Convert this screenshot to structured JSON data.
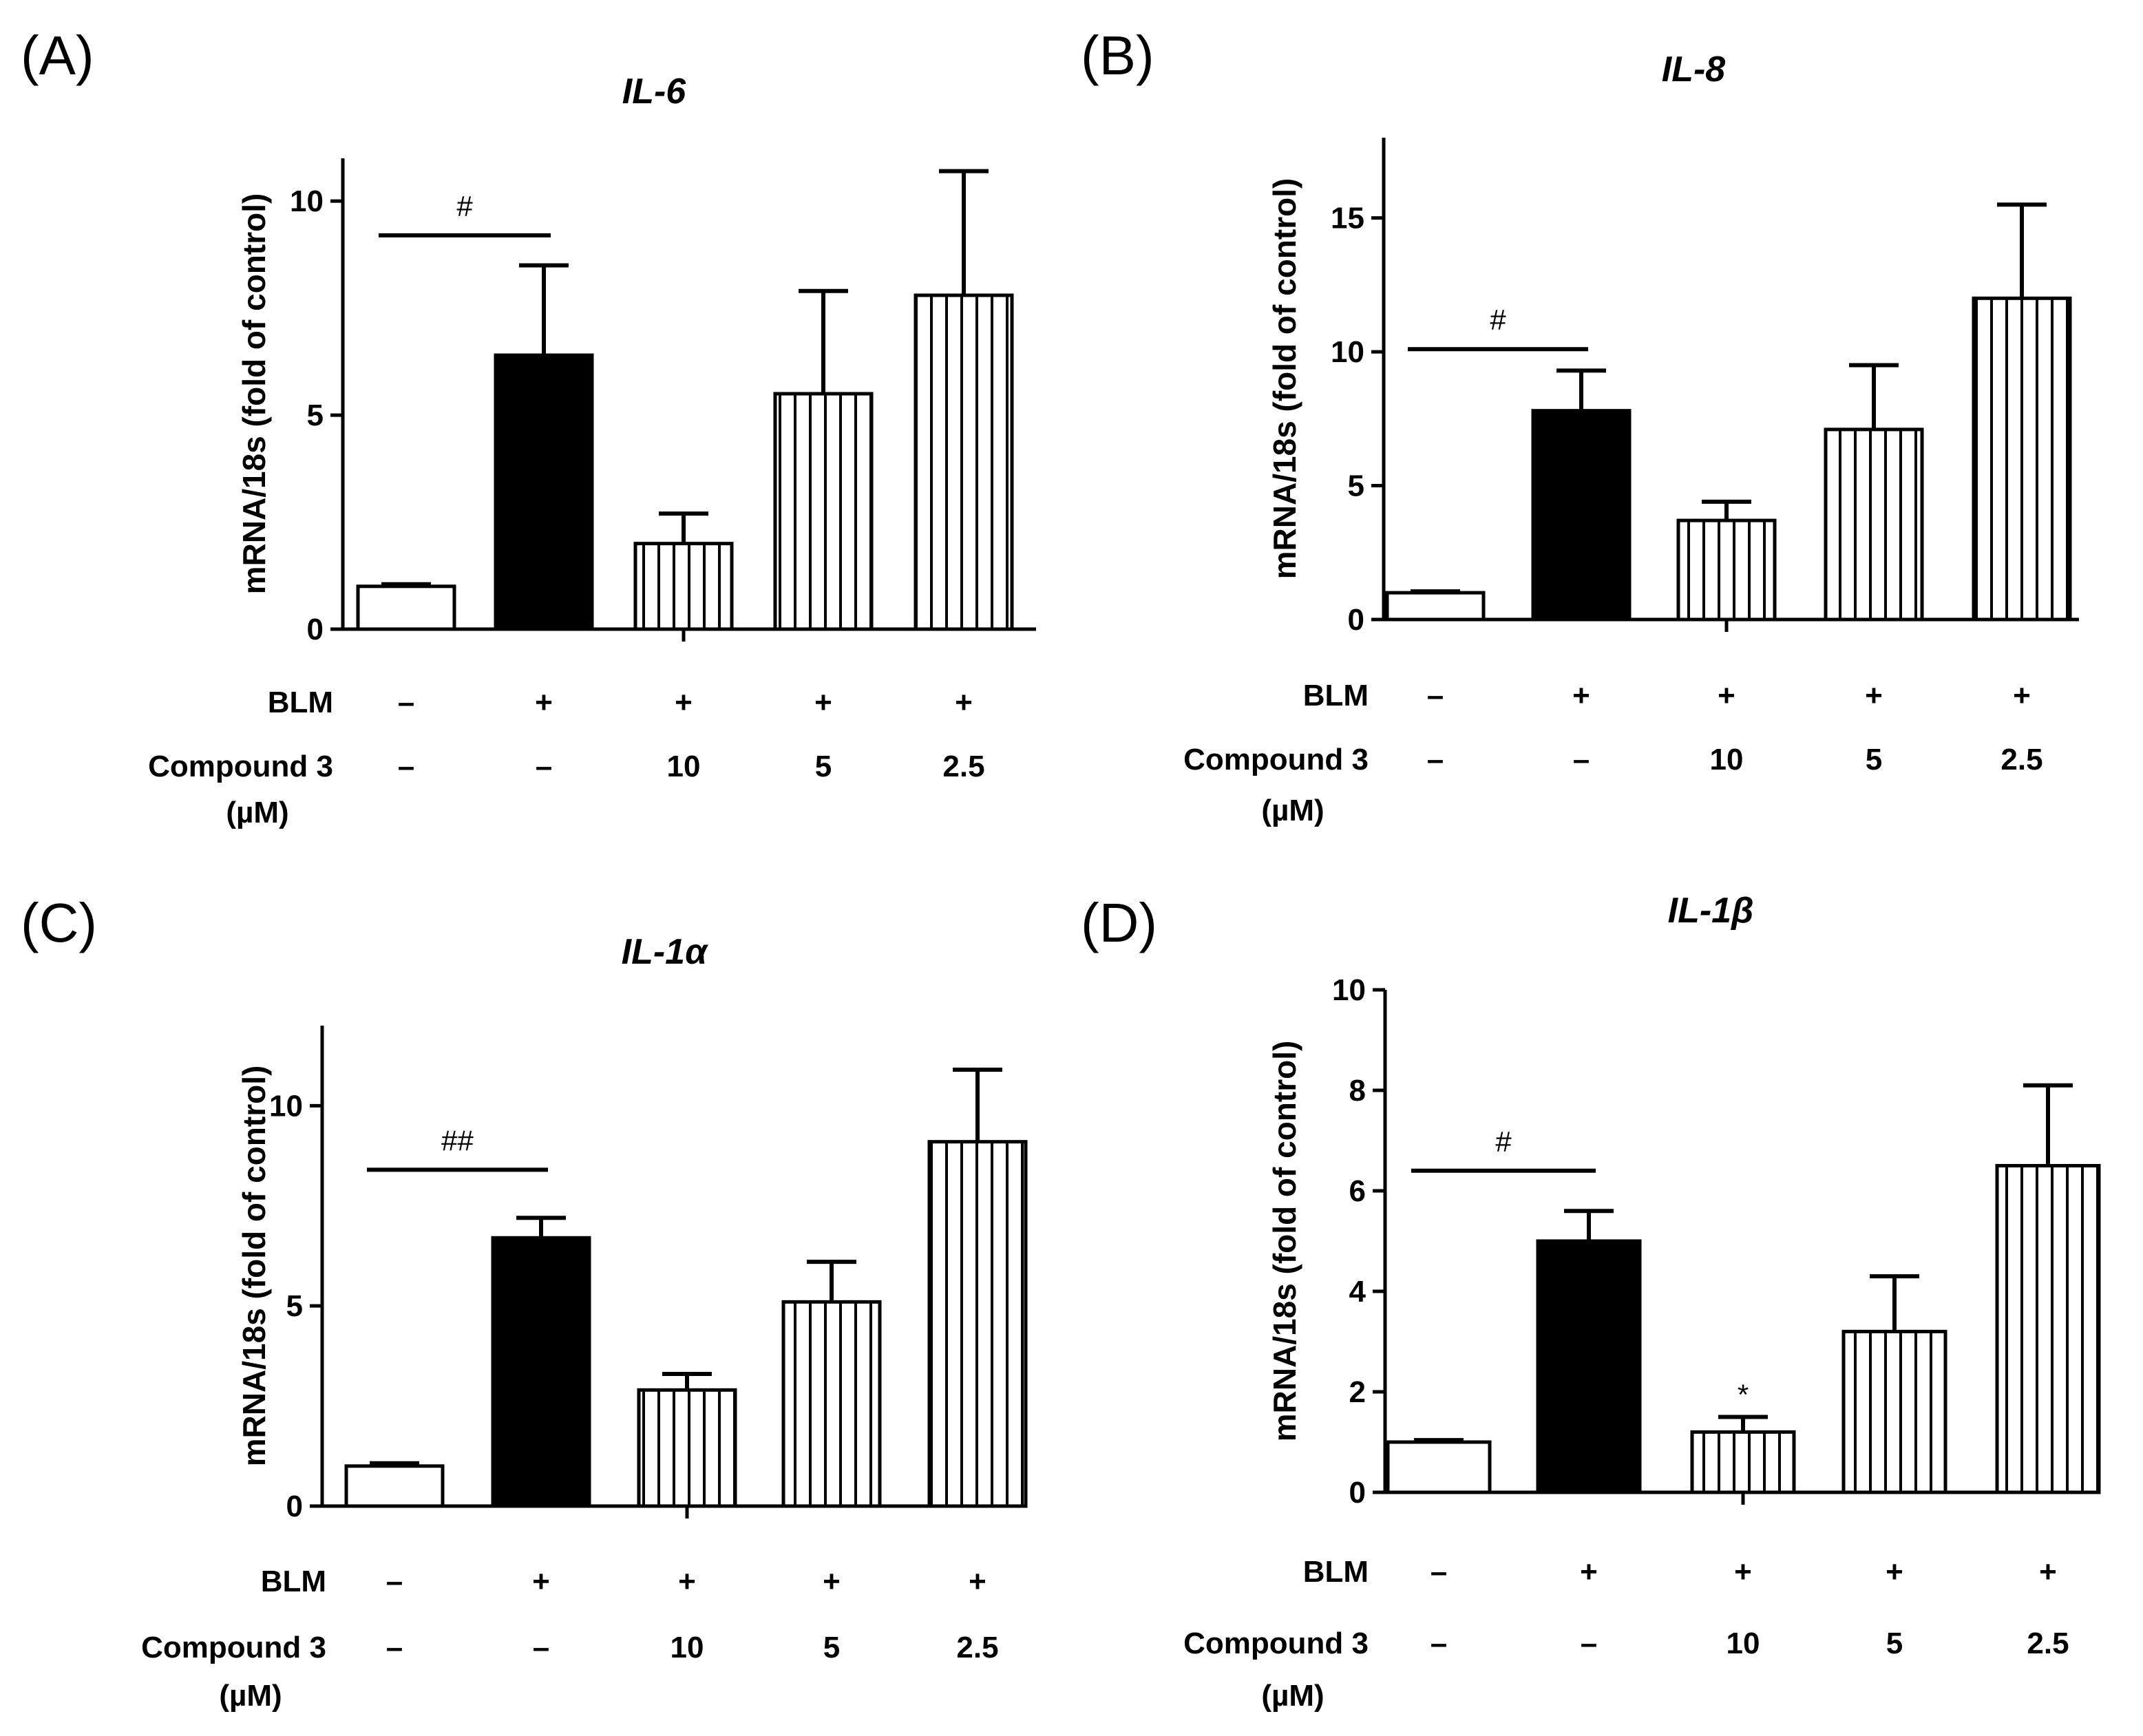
{
  "figure": {
    "row_labels": {
      "blm": "BLM",
      "compound": "Compound 3",
      "compound_unit": "(µM)"
    }
  },
  "chart_data": [
    {
      "type": "bar",
      "panel": "(A)",
      "title": "IL-6",
      "ylabel": "mRNA/18s (fold of control)",
      "ylim": [
        0,
        11
      ],
      "yticks": [
        0,
        5,
        10
      ],
      "categories": [
        "control",
        "BLM",
        "BLM + Compound 3 10 µM",
        "BLM + Compound 3 5 µM",
        "BLM + Compound 3 2.5 µM"
      ],
      "values": [
        1.0,
        6.4,
        2.0,
        5.5,
        7.8
      ],
      "errors": [
        0.05,
        2.1,
        0.7,
        2.4,
        2.9
      ],
      "fills": [
        "white",
        "black",
        "vstripes",
        "vstripes",
        "vstripes"
      ],
      "blm": [
        "–",
        "+",
        "+",
        "+",
        "+"
      ],
      "compound": [
        "–",
        "–",
        "10",
        "5",
        "2.5"
      ],
      "significance": {
        "label": "#",
        "from": 0,
        "to": 1,
        "y": 9.2
      },
      "star_labels": [
        "",
        "",
        "",
        "",
        ""
      ]
    },
    {
      "type": "bar",
      "panel": "(B)",
      "title": "IL-8",
      "ylabel": "mRNA/18s (fold of control)",
      "ylim": [
        0,
        18
      ],
      "yticks": [
        0,
        5,
        10,
        15
      ],
      "categories": [
        "control",
        "BLM",
        "BLM + Compound 3 10 µM",
        "BLM + Compound 3 5 µM",
        "BLM + Compound 3 2.5 µM"
      ],
      "values": [
        1.0,
        7.8,
        3.7,
        7.1,
        12.0
      ],
      "errors": [
        0.05,
        1.5,
        0.7,
        2.4,
        3.5
      ],
      "fills": [
        "white",
        "black",
        "vstripes",
        "vstripes",
        "vstripes"
      ],
      "blm": [
        "–",
        "+",
        "+",
        "+",
        "+"
      ],
      "compound": [
        "–",
        "–",
        "10",
        "5",
        "2.5"
      ],
      "significance": {
        "label": "#",
        "from": 0,
        "to": 1,
        "y": 10.1
      },
      "star_labels": [
        "",
        "",
        "",
        "",
        ""
      ]
    },
    {
      "type": "bar",
      "panel": "(C)",
      "title": "IL-1α",
      "ylabel": "mRNA/18s (fold of control)",
      "ylim": [
        0,
        12
      ],
      "yticks": [
        0,
        5,
        10
      ],
      "categories": [
        "control",
        "BLM",
        "BLM + Compound 3 10 µM",
        "BLM + Compound 3 5 µM",
        "BLM + Compound 3 2.5 µM"
      ],
      "values": [
        1.0,
        6.7,
        2.9,
        5.1,
        9.1
      ],
      "errors": [
        0.07,
        0.5,
        0.4,
        1.0,
        1.8
      ],
      "fills": [
        "white",
        "black",
        "vstripes",
        "vstripes",
        "vstripes"
      ],
      "blm": [
        "–",
        "+",
        "+",
        "+",
        "+"
      ],
      "compound": [
        "–",
        "–",
        "10",
        "5",
        "2.5"
      ],
      "significance": {
        "label": "##",
        "from": 0,
        "to": 1,
        "y": 8.4
      },
      "star_labels": [
        "",
        "",
        "",
        "",
        ""
      ]
    },
    {
      "type": "bar",
      "panel": "(D)",
      "title": "IL-1β",
      "ylabel": "mRNA/18s (fold of control)",
      "ylim": [
        0,
        10
      ],
      "yticks": [
        0,
        2,
        4,
        6,
        8,
        10
      ],
      "categories": [
        "control",
        "BLM",
        "BLM + Compound 3 10 µM",
        "BLM + Compound 3 5 µM",
        "BLM + Compound 3 2.5 µM"
      ],
      "values": [
        1.0,
        5.0,
        1.2,
        3.2,
        6.5
      ],
      "errors": [
        0.04,
        0.6,
        0.3,
        1.1,
        1.6
      ],
      "fills": [
        "white",
        "black",
        "vstripes",
        "vstripes",
        "vstripes"
      ],
      "blm": [
        "–",
        "+",
        "+",
        "+",
        "+"
      ],
      "compound": [
        "–",
        "–",
        "10",
        "5",
        "2.5"
      ],
      "significance": {
        "label": "#",
        "from": 0,
        "to": 1,
        "y": 6.4
      },
      "star_labels": [
        "",
        "",
        "*",
        "",
        ""
      ]
    }
  ]
}
